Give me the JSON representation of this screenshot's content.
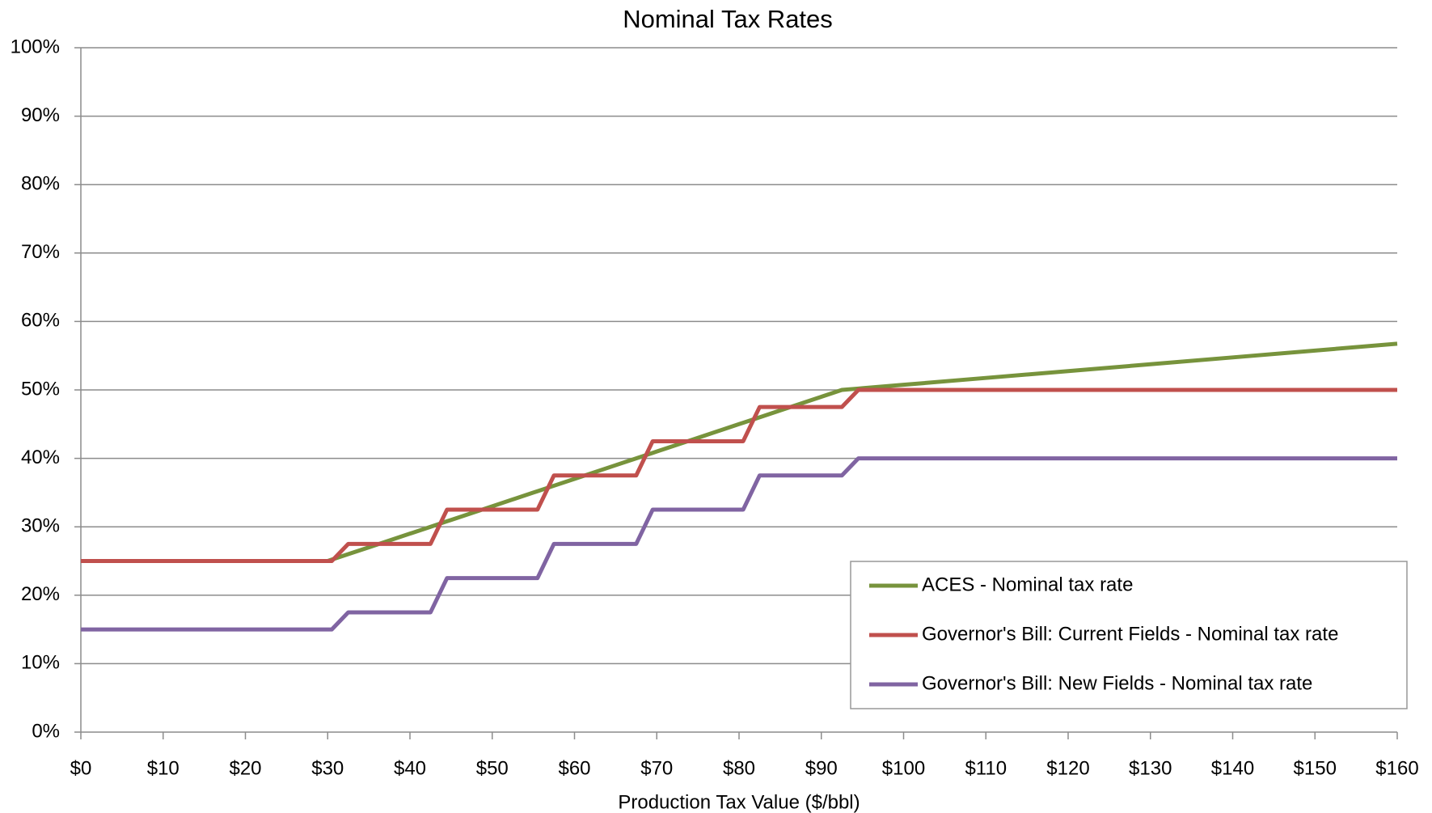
{
  "chart_data": {
    "type": "line",
    "title": "Nominal Tax Rates",
    "x_label": "Production Tax Value ($/bbl)",
    "x": [
      0,
      30,
      30.5,
      32.5,
      35,
      40,
      42.5,
      44.5,
      45,
      50,
      55,
      55.5,
      57.5,
      60,
      65,
      67.5,
      69.5,
      70,
      75,
      80,
      80.5,
      82.5,
      85,
      90,
      92.5,
      94.5,
      95,
      100,
      110,
      120,
      130,
      140,
      150,
      160
    ],
    "series": [
      {
        "name": "ACES - Nominal tax rate",
        "color": "#77933c",
        "values": [
          25,
          25,
          25.2,
          26,
          27,
          29,
          30,
          30.8,
          31,
          33,
          35,
          35.2,
          36,
          37,
          39,
          40,
          40.8,
          41,
          43,
          45,
          45.2,
          46,
          47,
          49,
          50,
          50.2,
          50.25,
          50.75,
          51.75,
          52.75,
          53.75,
          54.75,
          55.75,
          56.75
        ]
      },
      {
        "name": "Governor's Bill: Current Fields - Nominal tax rate",
        "color": "#c0504d",
        "values": [
          25,
          25,
          25,
          27.5,
          27.5,
          27.5,
          27.5,
          32.5,
          32.5,
          32.5,
          32.5,
          32.5,
          37.5,
          37.5,
          37.5,
          37.5,
          42.5,
          42.5,
          42.5,
          42.5,
          42.5,
          47.5,
          47.5,
          47.5,
          47.5,
          50,
          50,
          50,
          50,
          50,
          50,
          50,
          50,
          50
        ]
      },
      {
        "name": "Governor's Bill: New Fields - Nominal tax rate",
        "color": "#8064a2",
        "values": [
          15,
          15,
          15,
          17.5,
          17.5,
          17.5,
          17.5,
          22.5,
          22.5,
          22.5,
          22.5,
          22.5,
          27.5,
          27.5,
          27.5,
          27.5,
          32.5,
          32.5,
          32.5,
          32.5,
          32.5,
          37.5,
          37.5,
          37.5,
          37.5,
          40,
          40,
          40,
          40,
          40,
          40,
          40,
          40,
          40
        ]
      }
    ],
    "xlim": [
      0,
      160
    ],
    "xticks": [
      {
        "value": 0,
        "label": "$0"
      },
      {
        "value": 10,
        "label": "$10"
      },
      {
        "value": 20,
        "label": "$20"
      },
      {
        "value": 30,
        "label": "$30"
      },
      {
        "value": 40,
        "label": "$40"
      },
      {
        "value": 50,
        "label": "$50"
      },
      {
        "value": 60,
        "label": "$60"
      },
      {
        "value": 70,
        "label": "$70"
      },
      {
        "value": 80,
        "label": "$80"
      },
      {
        "value": 90,
        "label": "$90"
      },
      {
        "value": 100,
        "label": "$100"
      },
      {
        "value": 110,
        "label": "$110"
      },
      {
        "value": 120,
        "label": "$120"
      },
      {
        "value": 130,
        "label": "$130"
      },
      {
        "value": 140,
        "label": "$140"
      },
      {
        "value": 150,
        "label": "$150"
      },
      {
        "value": 160,
        "label": "$160"
      }
    ],
    "ylim": [
      0,
      100
    ],
    "yticks": [
      {
        "value": 0,
        "label": "0%"
      },
      {
        "value": 10,
        "label": "10%"
      },
      {
        "value": 20,
        "label": "20%"
      },
      {
        "value": 30,
        "label": "30%"
      },
      {
        "value": 40,
        "label": "40%"
      },
      {
        "value": 50,
        "label": "50%"
      },
      {
        "value": 60,
        "label": "60%"
      },
      {
        "value": 70,
        "label": "70%"
      },
      {
        "value": 80,
        "label": "80%"
      },
      {
        "value": 90,
        "label": "90%"
      },
      {
        "value": 100,
        "label": "100%"
      }
    ],
    "grid": true,
    "legend": "lower right"
  }
}
